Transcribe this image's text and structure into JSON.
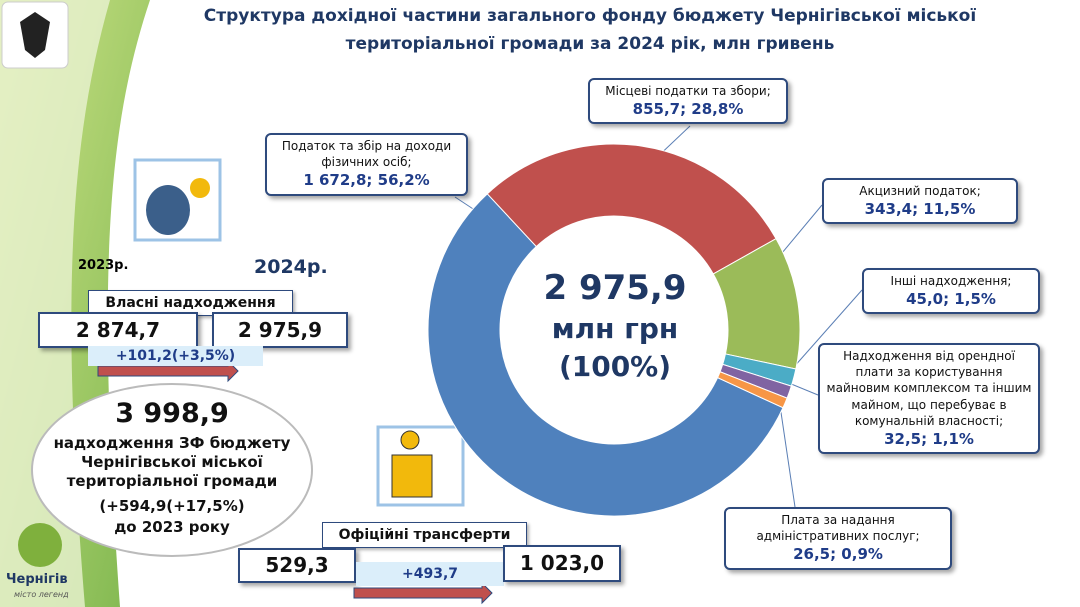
{
  "header": {
    "title_lines": [
      "Структура дохідної частини загального фонду бюджету Чернігівської міської",
      "територіальної громади за 2024 рік, млн гривень"
    ]
  },
  "chart_data": {
    "type": "donut",
    "center_lines": [
      "2 975,9",
      "млн грн",
      "(100%)"
    ],
    "categories": [
      "Податок та збір на доходи фізичних осіб;",
      "Місцеві податки та збори;",
      "Акцизний податок;",
      "Інші надходження;",
      "Надходження від орендної плати за користування  майновим комплексом та іншим майном, що перебуває в комунальній власності;",
      "Плата за надання адміністративних послуг;"
    ],
    "values": [
      1672.8,
      855.7,
      343.4,
      45.0,
      32.5,
      26.5
    ],
    "value_labels": [
      "1 672,8; 56,2%",
      "855,7; 28,8%",
      "343,4; 11,5%",
      "45,0; 1,5%",
      "32,5; 1,1%",
      "26,5; 0,9%"
    ],
    "colors": [
      "#4f81bd",
      "#c0504d",
      "#9bbb59",
      "#4bacc6",
      "#8064a2",
      "#f79646"
    ]
  },
  "own_revenue": {
    "year_2023": "2023р.",
    "year_2024": "2024р.",
    "label": "Власні надходження",
    "value_2023": "2 874,7",
    "value_2024": "2 975,9",
    "change": "+101,2(+3,5%)"
  },
  "total": {
    "value": "3 998,9",
    "lines": [
      "надходження ЗФ бюджету",
      "Чернігівської міської",
      "територіальної громади",
      "(+594,9(+17,5%)",
      "до 2023 року"
    ]
  },
  "transfers": {
    "label": "Офіційні трансферти",
    "value_2023": "529,3",
    "value_2024": "1 023,0",
    "change": "+493,7"
  },
  "logo": {
    "name": "Чернігів",
    "tagline": "місто легенд"
  }
}
